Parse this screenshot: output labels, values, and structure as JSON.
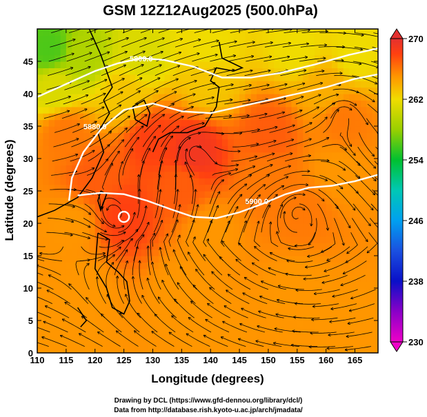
{
  "figure": {
    "title": "GSM 12Z12Aug2025 (500.0hPa)",
    "credits": [
      "Drawing by DCL (https://www.gfd-dennou.org/library/dcl/)",
      "Data from http://database.rish.kyoto-u.ac.jp/arch/jmadata/"
    ]
  },
  "chart_data": {
    "type": "heatmap",
    "title": "GSM 12Z12Aug2025 (500.0hPa)",
    "xlabel": "Longitude (degrees)",
    "ylabel": "Latitude  (degrees)",
    "xlim": [
      110,
      169
    ],
    "ylim": [
      0,
      50
    ],
    "x_ticks": [
      110,
      115,
      120,
      125,
      130,
      135,
      140,
      145,
      150,
      155,
      160,
      165
    ],
    "y_ticks": [
      0,
      5,
      10,
      15,
      20,
      25,
      30,
      35,
      40,
      45
    ],
    "colorbar": {
      "range": [
        230,
        270
      ],
      "ticks": [
        230,
        238,
        246,
        254,
        262,
        270
      ],
      "stops": [
        {
          "value": 230,
          "color": "#ee00c8"
        },
        {
          "value": 234,
          "color": "#8a00c8"
        },
        {
          "value": 238,
          "color": "#0a10c8"
        },
        {
          "value": 242,
          "color": "#1a50e0"
        },
        {
          "value": 246,
          "color": "#00a0f0"
        },
        {
          "value": 250,
          "color": "#00c8b4"
        },
        {
          "value": 254,
          "color": "#00c030"
        },
        {
          "value": 258,
          "color": "#9ad000"
        },
        {
          "value": 262,
          "color": "#f0dc00"
        },
        {
          "value": 265,
          "color": "#ff9600"
        },
        {
          "value": 268,
          "color": "#ff4010"
        },
        {
          "value": 270,
          "color": "#e43030"
        }
      ]
    },
    "field_samples": [
      {
        "lon": 112,
        "lat": 47,
        "value": 256
      },
      {
        "lon": 118,
        "lat": 46,
        "value": 259
      },
      {
        "lon": 128,
        "lat": 46,
        "value": 261
      },
      {
        "lon": 140,
        "lat": 47,
        "value": 262
      },
      {
        "lon": 155,
        "lat": 47,
        "value": 262
      },
      {
        "lon": 165,
        "lat": 46,
        "value": 262
      },
      {
        "lon": 113,
        "lat": 41,
        "value": 261
      },
      {
        "lon": 125,
        "lat": 40,
        "value": 263
      },
      {
        "lon": 140,
        "lat": 42,
        "value": 263
      },
      {
        "lon": 160,
        "lat": 41,
        "value": 264
      },
      {
        "lon": 115,
        "lat": 34,
        "value": 266
      },
      {
        "lon": 130,
        "lat": 33,
        "value": 268
      },
      {
        "lon": 137,
        "lat": 31,
        "value": 269
      },
      {
        "lon": 150,
        "lat": 34,
        "value": 267
      },
      {
        "lon": 163,
        "lat": 36,
        "value": 266
      },
      {
        "lon": 120,
        "lat": 27,
        "value": 267
      },
      {
        "lon": 135,
        "lat": 26,
        "value": 267
      },
      {
        "lon": 150,
        "lat": 27,
        "value": 266
      },
      {
        "lon": 162,
        "lat": 28,
        "value": 265
      },
      {
        "lon": 116,
        "lat": 20,
        "value": 265
      },
      {
        "lon": 125,
        "lat": 21,
        "value": 268
      },
      {
        "lon": 140,
        "lat": 19,
        "value": 265
      },
      {
        "lon": 156,
        "lat": 22,
        "value": 266
      },
      {
        "lon": 118,
        "lat": 10,
        "value": 265
      },
      {
        "lon": 135,
        "lat": 10,
        "value": 265
      },
      {
        "lon": 155,
        "lat": 10,
        "value": 265
      },
      {
        "lon": 115,
        "lat": 3,
        "value": 265
      },
      {
        "lon": 140,
        "lat": 3,
        "value": 265
      },
      {
        "lon": 165,
        "lat": 3,
        "value": 265
      }
    ],
    "contours": [
      {
        "label": "5800.0",
        "label_position": {
          "lon": 128,
          "lat": 45
        },
        "points": [
          [
            110,
            39.5
          ],
          [
            115,
            41.5
          ],
          [
            120,
            43.5
          ],
          [
            124,
            44.7
          ],
          [
            128,
            45.5
          ],
          [
            132,
            45.2
          ],
          [
            137,
            44.2
          ],
          [
            142,
            42.5
          ],
          [
            147,
            42.5
          ],
          [
            152,
            43.2
          ],
          [
            158,
            44.5
          ],
          [
            164,
            46
          ],
          [
            169,
            47
          ]
        ]
      },
      {
        "label": "5880.0",
        "label_position": {
          "lon": 120,
          "lat": 34.5
        },
        "points": [
          [
            115.5,
            23.5
          ],
          [
            116,
            27
          ],
          [
            118,
            31
          ],
          [
            121,
            34.5
          ],
          [
            125,
            37.5
          ],
          [
            130,
            38.5
          ],
          [
            135,
            37.3
          ],
          [
            140,
            37
          ],
          [
            145,
            38
          ],
          [
            150,
            39
          ],
          [
            155,
            40
          ],
          [
            160,
            41
          ],
          [
            165,
            42.3
          ],
          [
            169,
            43
          ]
        ]
      },
      {
        "label": "5900.0",
        "label_position": {
          "lon": 148,
          "lat": 23
        },
        "points": [
          [
            117,
            24.3
          ],
          [
            121,
            24.7
          ],
          [
            125,
            24.5
          ],
          [
            129,
            23.5
          ],
          [
            133,
            22.2
          ],
          [
            137,
            21
          ],
          [
            141,
            20.8
          ],
          [
            145,
            21.7
          ],
          [
            149,
            23
          ],
          [
            153,
            24.5
          ],
          [
            157,
            25.5
          ],
          [
            161,
            25.8
          ],
          [
            165,
            26.5
          ],
          [
            169,
            27.5
          ]
        ]
      }
    ],
    "closed_contours": [
      {
        "label": "",
        "center": {
          "lon": 125,
          "lat": 21
        },
        "radius_deg": 0.9
      }
    ],
    "vortices": [
      {
        "type": "anticyclone",
        "lon": 137,
        "lat": 31
      },
      {
        "type": "anticyclone",
        "lon": 155,
        "lat": 21.5
      },
      {
        "type": "anticyclone",
        "lon": 163,
        "lat": 37
      },
      {
        "type": "cyclone",
        "lon": 124,
        "lat": 21
      }
    ]
  }
}
